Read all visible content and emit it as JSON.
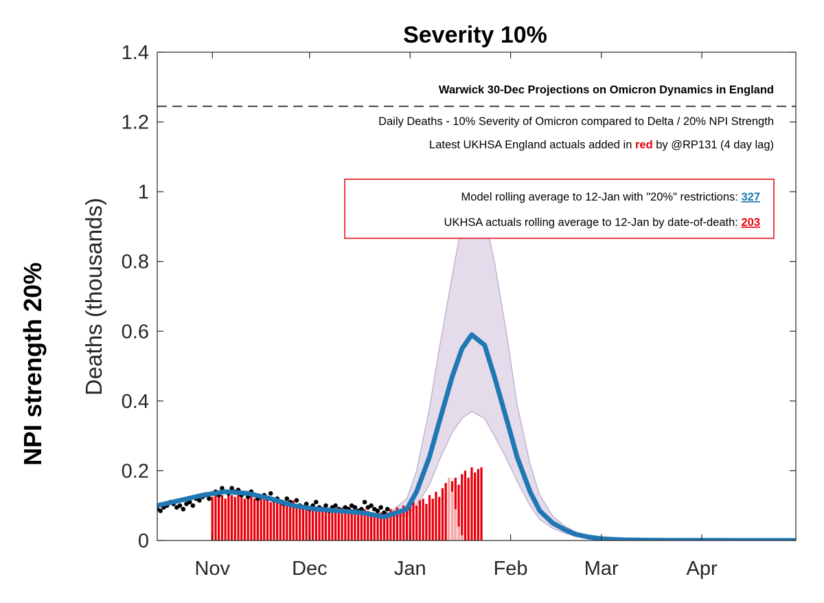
{
  "chart_data": {
    "type": "bar",
    "title": "Severity 10%",
    "ylabel": "Deaths (thousands)",
    "side_label": "NPI strength 20%",
    "ylim": [
      0,
      1.4
    ],
    "yticks": [
      {
        "value": 0,
        "label": "0"
      },
      {
        "value": 0.2,
        "label": "0.2"
      },
      {
        "value": 0.4,
        "label": "0.4"
      },
      {
        "value": 0.6,
        "label": "0.6"
      },
      {
        "value": 0.8,
        "label": "0.8"
      },
      {
        "value": 1.0,
        "label": "1"
      },
      {
        "value": 1.2,
        "label": "1.2"
      },
      {
        "value": 1.4,
        "label": "1.4"
      }
    ],
    "xlim": [
      "2021-10-15",
      "2022-04-30"
    ],
    "xticks": [
      {
        "date": "2021-11-01",
        "label": "Nov"
      },
      {
        "date": "2021-12-01",
        "label": "Dec"
      },
      {
        "date": "2022-01-01",
        "label": "Jan"
      },
      {
        "date": "2022-02-01",
        "label": "Feb"
      },
      {
        "date": "2022-03-01",
        "label": "Mar"
      },
      {
        "date": "2022-04-01",
        "label": "Apr"
      }
    ],
    "grid": false,
    "reference_line": {
      "y": 1.245,
      "style": "dashed"
    },
    "annotations": {
      "heading": "Warwick 30-Dec Projections on Omicron Dynamics in England",
      "line1": "Daily Deaths - 10% Severity of Omicron compared to Delta / 20% NPI Strength",
      "line2_pre": "Latest UKHSA England actuals added in ",
      "line2_red": "red",
      "line2_post": " by @RP131 (4 day lag)",
      "box_line1": "Model rolling average to 12-Jan with \"20%\" restrictions: ",
      "box_value1": "327",
      "box_line2": "UKHSA actuals rolling average to 12-Jan by date-of-death: ",
      "box_value2": "203"
    },
    "model_curve": {
      "dates": [
        "2021-10-15",
        "2021-10-22",
        "2021-10-29",
        "2021-11-05",
        "2021-11-12",
        "2021-11-19",
        "2021-11-26",
        "2021-12-03",
        "2021-12-10",
        "2021-12-17",
        "2021-12-24",
        "2021-12-31",
        "2022-01-03",
        "2022-01-07",
        "2022-01-10",
        "2022-01-14",
        "2022-01-17",
        "2022-01-20",
        "2022-01-24",
        "2022-01-27",
        "2022-01-31",
        "2022-02-03",
        "2022-02-07",
        "2022-02-10",
        "2022-02-14",
        "2022-02-18",
        "2022-02-21",
        "2022-02-25",
        "2022-03-01",
        "2022-03-08",
        "2022-03-15",
        "2022-03-22",
        "2022-04-01",
        "2022-04-15",
        "2022-04-30"
      ],
      "median": [
        0.1,
        0.115,
        0.13,
        0.14,
        0.135,
        0.12,
        0.1,
        0.09,
        0.085,
        0.08,
        0.068,
        0.09,
        0.14,
        0.24,
        0.34,
        0.47,
        0.55,
        0.59,
        0.56,
        0.47,
        0.34,
        0.24,
        0.14,
        0.085,
        0.05,
        0.03,
        0.018,
        0.01,
        0.005,
        0.002,
        0.001,
        0.0005,
        0.0003,
        0.0002,
        0.0001
      ],
      "lower": [
        0.1,
        0.115,
        0.13,
        0.14,
        0.135,
        0.12,
        0.1,
        0.09,
        0.085,
        0.08,
        0.068,
        0.07,
        0.1,
        0.16,
        0.23,
        0.31,
        0.35,
        0.37,
        0.35,
        0.3,
        0.23,
        0.17,
        0.1,
        0.06,
        0.035,
        0.02,
        0.012,
        0.007,
        0.003,
        0.001,
        0.0005,
        0.0003,
        0.0002,
        0.0001,
        0.0001
      ],
      "upper": [
        0.1,
        0.115,
        0.13,
        0.14,
        0.135,
        0.12,
        0.1,
        0.09,
        0.085,
        0.08,
        0.068,
        0.12,
        0.2,
        0.38,
        0.55,
        0.76,
        0.91,
        0.97,
        0.93,
        0.8,
        0.58,
        0.39,
        0.22,
        0.13,
        0.07,
        0.04,
        0.025,
        0.013,
        0.007,
        0.003,
        0.0015,
        0.0008,
        0.0004,
        0.0002,
        0.0001
      ]
    },
    "observed_points": {
      "start_date": "2021-10-15",
      "values": [
        0.09,
        0.085,
        0.095,
        0.1,
        0.11,
        0.105,
        0.095,
        0.1,
        0.09,
        0.105,
        0.11,
        0.1,
        0.12,
        0.115,
        0.125,
        0.13,
        0.12,
        0.135,
        0.14,
        0.13,
        0.15,
        0.14,
        0.135,
        0.15,
        0.14,
        0.145,
        0.13,
        0.135,
        0.125,
        0.14,
        0.13,
        0.12,
        0.125,
        0.13,
        0.12,
        0.135,
        0.115,
        0.12,
        0.11,
        0.105,
        0.12,
        0.11,
        0.1,
        0.115,
        0.1,
        0.095,
        0.105,
        0.09,
        0.1,
        0.11,
        0.095,
        0.09,
        0.1,
        0.085,
        0.095,
        0.1,
        0.09,
        0.085,
        0.095,
        0.09,
        0.1,
        0.095,
        0.085,
        0.09,
        0.11,
        0.095,
        0.1,
        0.09,
        0.085,
        0.095,
        0.08,
        0.09
      ]
    },
    "actuals_bars": {
      "start_date": "2021-11-01",
      "values": [
        0.125,
        0.14,
        0.135,
        0.13,
        0.12,
        0.135,
        0.13,
        0.125,
        0.14,
        0.13,
        0.12,
        0.125,
        0.13,
        0.12,
        0.115,
        0.125,
        0.12,
        0.115,
        0.11,
        0.12,
        0.115,
        0.105,
        0.11,
        0.105,
        0.1,
        0.115,
        0.1,
        0.105,
        0.095,
        0.1,
        0.09,
        0.1,
        0.095,
        0.09,
        0.095,
        0.1,
        0.09,
        0.095,
        0.085,
        0.09,
        0.095,
        0.09,
        0.085,
        0.09,
        0.085,
        0.08,
        0.085,
        0.09,
        0.085,
        0.075,
        0.08,
        0.085,
        0.08,
        0.075,
        0.08,
        0.09,
        0.085,
        0.095,
        0.09,
        0.1,
        0.095,
        0.105,
        0.11,
        0.1,
        0.115,
        0.12,
        0.105,
        0.13,
        0.12,
        0.14,
        0.125,
        0.15,
        0.165,
        0.14,
        0.17,
        0.18,
        0.16,
        0.19,
        0.2,
        0.18,
        0.21,
        0.195,
        0.205,
        0.21
      ],
      "recent_start_date": "2022-01-13",
      "recent_values": [
        0.18,
        0.14,
        0.09,
        0.04,
        0.015
      ],
      "colors": {
        "actual": "#e8000b",
        "recent": "#f4a8a8"
      }
    },
    "colors": {
      "model": "#1f77b4",
      "band": "#e4dcea",
      "band_edge": "#b9a8cc",
      "points": "#000000",
      "highlight_red": "#e8000b",
      "box_border": "#e8000b"
    }
  }
}
